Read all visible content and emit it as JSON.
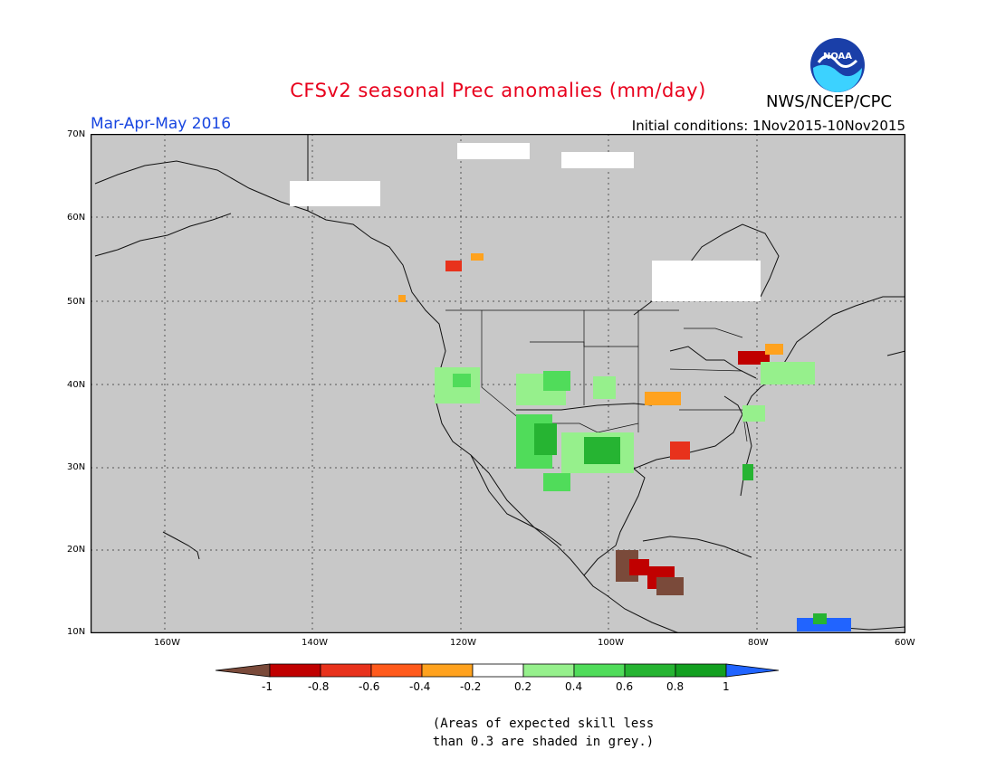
{
  "header": {
    "title": "CFSv2 seasonal Prec anomalies (mm/day)",
    "season": "Mar-Apr-May 2016",
    "initial_conditions": "Initial conditions: 1Nov2015-10Nov2015",
    "agency": "NWS/NCEP/CPC",
    "logo_text": "NOAA"
  },
  "map": {
    "lat_labels": [
      "70N",
      "60N",
      "50N",
      "40N",
      "30N",
      "20N",
      "10N"
    ],
    "lon_labels": [
      "160W",
      "140W",
      "120W",
      "100W",
      "80W",
      "60W"
    ],
    "background_color": "#c8c8c8"
  },
  "colorbar": {
    "labels": [
      "-1",
      "-0.8",
      "-0.6",
      "-0.4",
      "-0.2",
      "0.2",
      "0.4",
      "0.6",
      "0.8",
      "1"
    ],
    "colors": [
      "#7a4a3a",
      "#c00000",
      "#e8321c",
      "#ff5a1c",
      "#ffa21e",
      "#ffffff",
      "#96f08c",
      "#50dc5a",
      "#26b432",
      "#13a020",
      "#2164ff"
    ]
  },
  "note": {
    "line1": "(Areas of expected skill less",
    "line2": "than 0.3 are shaded in grey.)"
  }
}
